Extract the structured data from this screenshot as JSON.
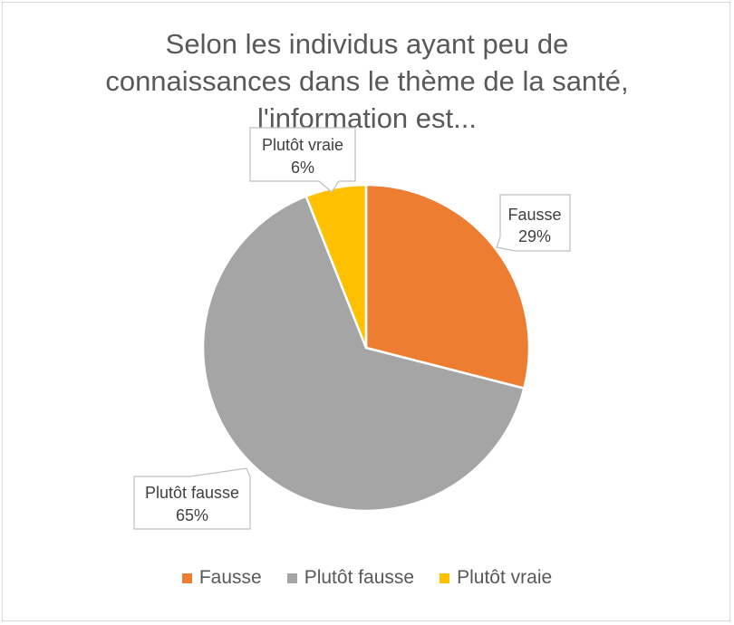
{
  "chart_data": {
    "type": "pie",
    "title_lines": [
      "Selon les individus ayant peu de",
      "connaissances dans le thème de la santé,",
      "l'information est..."
    ],
    "categories": [
      "Fausse",
      "Plutôt fausse",
      "Plutôt vraie"
    ],
    "values": [
      29,
      65,
      6
    ],
    "value_labels": [
      "29%",
      "65%",
      "6%"
    ],
    "colors": [
      "#ED7D31",
      "#A5A5A5",
      "#FFC000"
    ],
    "legend_position": "bottom",
    "data_labels": "callouts"
  }
}
